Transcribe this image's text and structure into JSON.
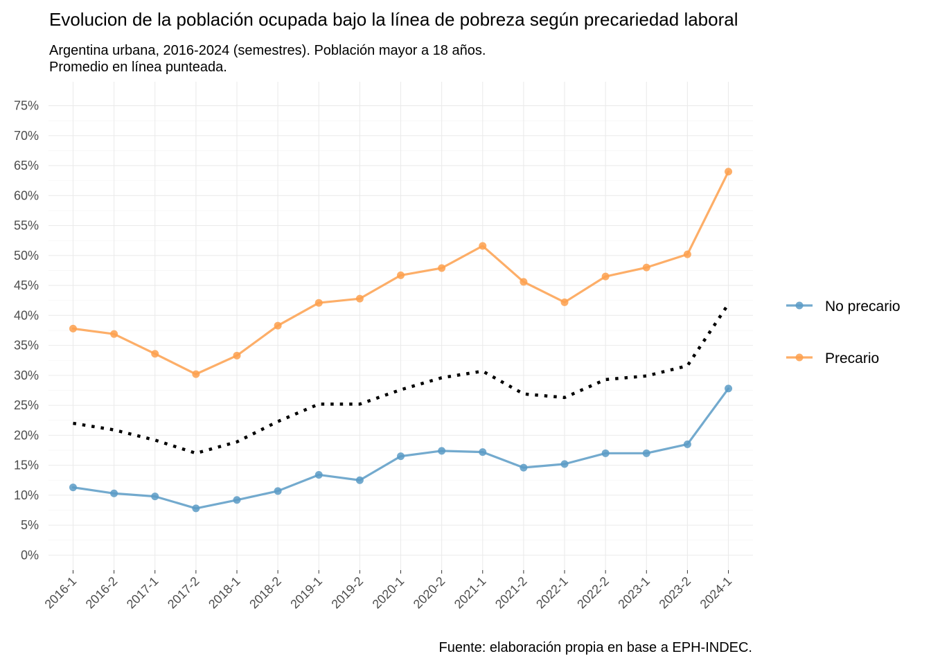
{
  "chart_data": {
    "type": "line",
    "title": "Evolucion de la población ocupada bajo la línea de pobreza según precariedad laboral",
    "subtitle_lines": [
      "Argentina urbana, 2016-2024 (semestres). Población mayor a 18 años.",
      "Promedio en línea punteada."
    ],
    "caption": "Fuente: elaboración propia en base a EPH-INDEC.",
    "categories": [
      "2016-1",
      "2016-2",
      "2017-1",
      "2017-2",
      "2018-1",
      "2018-2",
      "2019-1",
      "2019-2",
      "2020-1",
      "2020-2",
      "2021-1",
      "2021-2",
      "2022-1",
      "2022-2",
      "2023-1",
      "2023-2",
      "2024-1"
    ],
    "y_ticks": [
      0,
      5,
      10,
      15,
      20,
      25,
      30,
      35,
      40,
      45,
      50,
      55,
      60,
      65,
      70,
      75
    ],
    "y_tick_labels": [
      "0%",
      "5%",
      "10%",
      "15%",
      "20%",
      "25%",
      "30%",
      "35%",
      "40%",
      "45%",
      "50%",
      "55%",
      "60%",
      "65%",
      "70%",
      "75%"
    ],
    "ylim": [
      -2.5,
      79
    ],
    "y_unit": "%",
    "grid": true,
    "legend_position": "right",
    "series": [
      {
        "name": "No precario",
        "color": "#5b9bc6",
        "values": [
          11.3,
          10.3,
          9.8,
          7.8,
          9.2,
          10.7,
          13.4,
          12.5,
          16.5,
          17.4,
          17.2,
          14.6,
          15.2,
          17.0,
          17.0,
          18.5,
          27.8
        ]
      },
      {
        "name": "Precario",
        "color": "#fda04e",
        "values": [
          37.8,
          36.9,
          33.6,
          30.2,
          33.3,
          38.3,
          42.1,
          42.8,
          46.7,
          47.9,
          51.6,
          45.6,
          42.2,
          46.5,
          48.0,
          50.2,
          64.0
        ]
      }
    ],
    "average": {
      "style": "dotted",
      "color": "#000000",
      "values": [
        22.0,
        20.9,
        19.2,
        17.0,
        18.9,
        22.3,
        25.2,
        25.2,
        27.6,
        29.6,
        30.7,
        26.9,
        26.3,
        29.3,
        29.9,
        31.6,
        41.9
      ]
    }
  }
}
